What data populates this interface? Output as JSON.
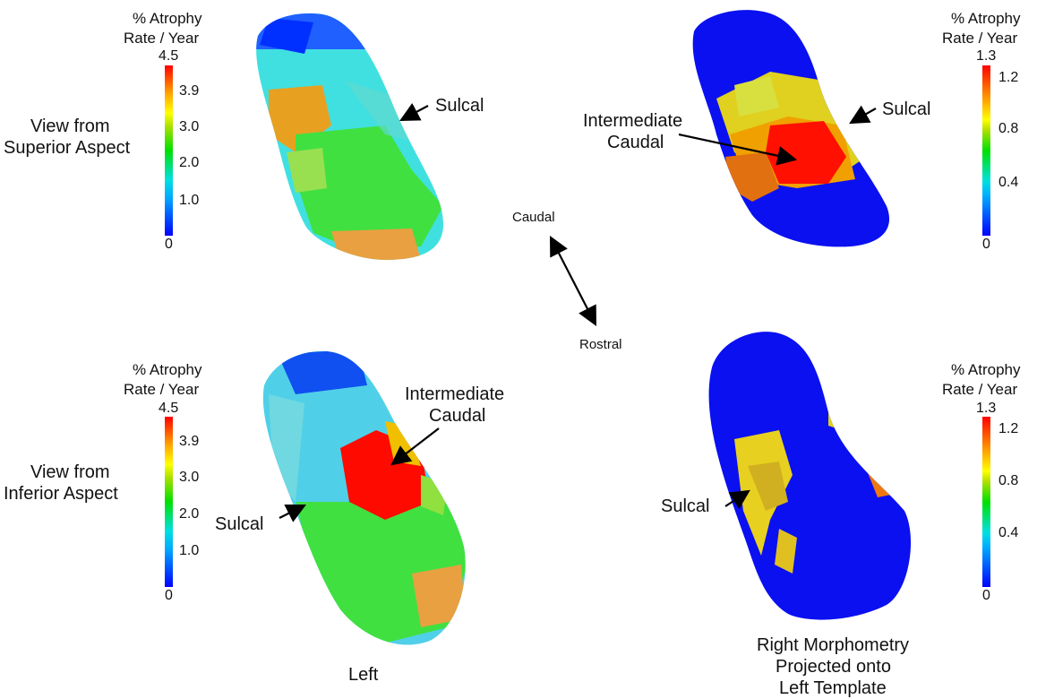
{
  "colorbar_title_line1": "% Atrophy",
  "colorbar_title_line2": "Rate / Year",
  "scale_left": {
    "max": "4.5",
    "ticks": [
      "3.9",
      "3.0",
      "2.0",
      "1.0"
    ],
    "min": "0"
  },
  "scale_right": {
    "max": "1.3",
    "ticks": [
      "1.2",
      "0.8",
      "0.4"
    ],
    "min": "0"
  },
  "view_superior_line1": "View from",
  "view_superior_line2": "Superior Aspect",
  "view_inferior_line1": "View from",
  "view_inferior_line2": "Inferior Aspect",
  "sulcal": "Sulcal",
  "intermediate": "Intermediate",
  "caudal_word": "Caudal",
  "orientation": {
    "caudal": "Caudal",
    "rostral": "Rostral"
  },
  "footer_left": "Left",
  "footer_right_line1": "Right Morphometry",
  "footer_right_line2": "Projected onto",
  "footer_right_line3": "Left Template",
  "colors": {
    "blue": "#0000ff",
    "cyan": "#00d8e8",
    "green": "#3ad83a",
    "yellow": "#e8e000",
    "orange": "#f07800",
    "red": "#ff0000"
  }
}
